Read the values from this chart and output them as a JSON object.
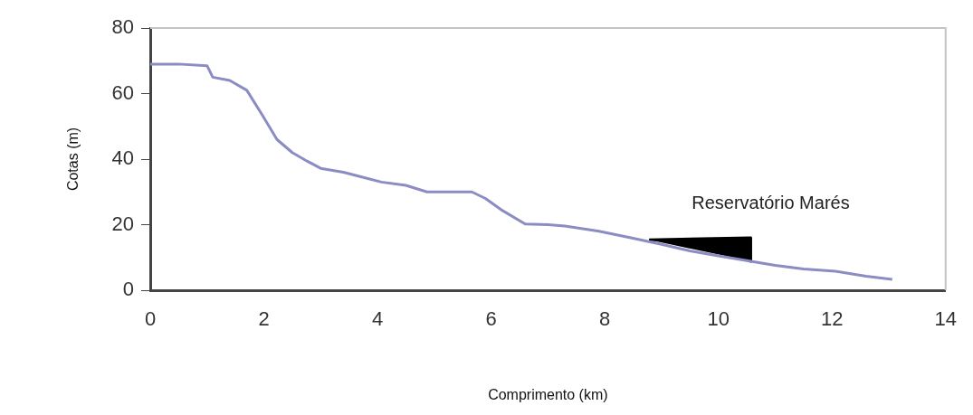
{
  "chart_data": {
    "type": "line",
    "xlabel": "Comprimento (km)",
    "ylabel": "Cotas (m)",
    "series": [
      {
        "color": "#8c8cc4",
        "x": [
          0,
          0.5,
          1,
          1.1,
          1.4,
          1.7,
          1.97,
          2.23,
          2.5,
          2.76,
          3,
          3.4,
          3.8,
          4.07,
          4.5,
          4.87,
          5.3,
          5.66,
          5.9,
          6.2,
          6.6,
          7,
          7.3,
          7.9,
          8.46,
          9,
          9.5,
          10,
          10.48,
          11,
          11.5,
          12.06,
          12.6,
          13.06
        ],
        "values": [
          69,
          69,
          68.5,
          65,
          64,
          61,
          53.5,
          46,
          42,
          39.4,
          37.2,
          36,
          34.2,
          33,
          32,
          30,
          30,
          30,
          28,
          24.3,
          20.2,
          20,
          19.6,
          18,
          16,
          14,
          12,
          10.5,
          9.1,
          7.6,
          6.5,
          5.8,
          4.3,
          3.3
        ]
      },
      {
        "type": "area",
        "color": "#000000",
        "x": [
          8.78,
          10.57,
          10.57
        ],
        "values": [
          15.4,
          16,
          8.8
        ]
      }
    ],
    "xlim": [
      0,
      14
    ],
    "xticks": [
      0,
      2,
      4,
      6,
      8,
      10,
      12,
      14
    ],
    "ylim": [
      0,
      80
    ],
    "yticks": [
      0,
      20,
      40,
      60,
      80
    ],
    "grid": false,
    "legend": false,
    "annotations": [
      "Reservatório Marés"
    ]
  }
}
